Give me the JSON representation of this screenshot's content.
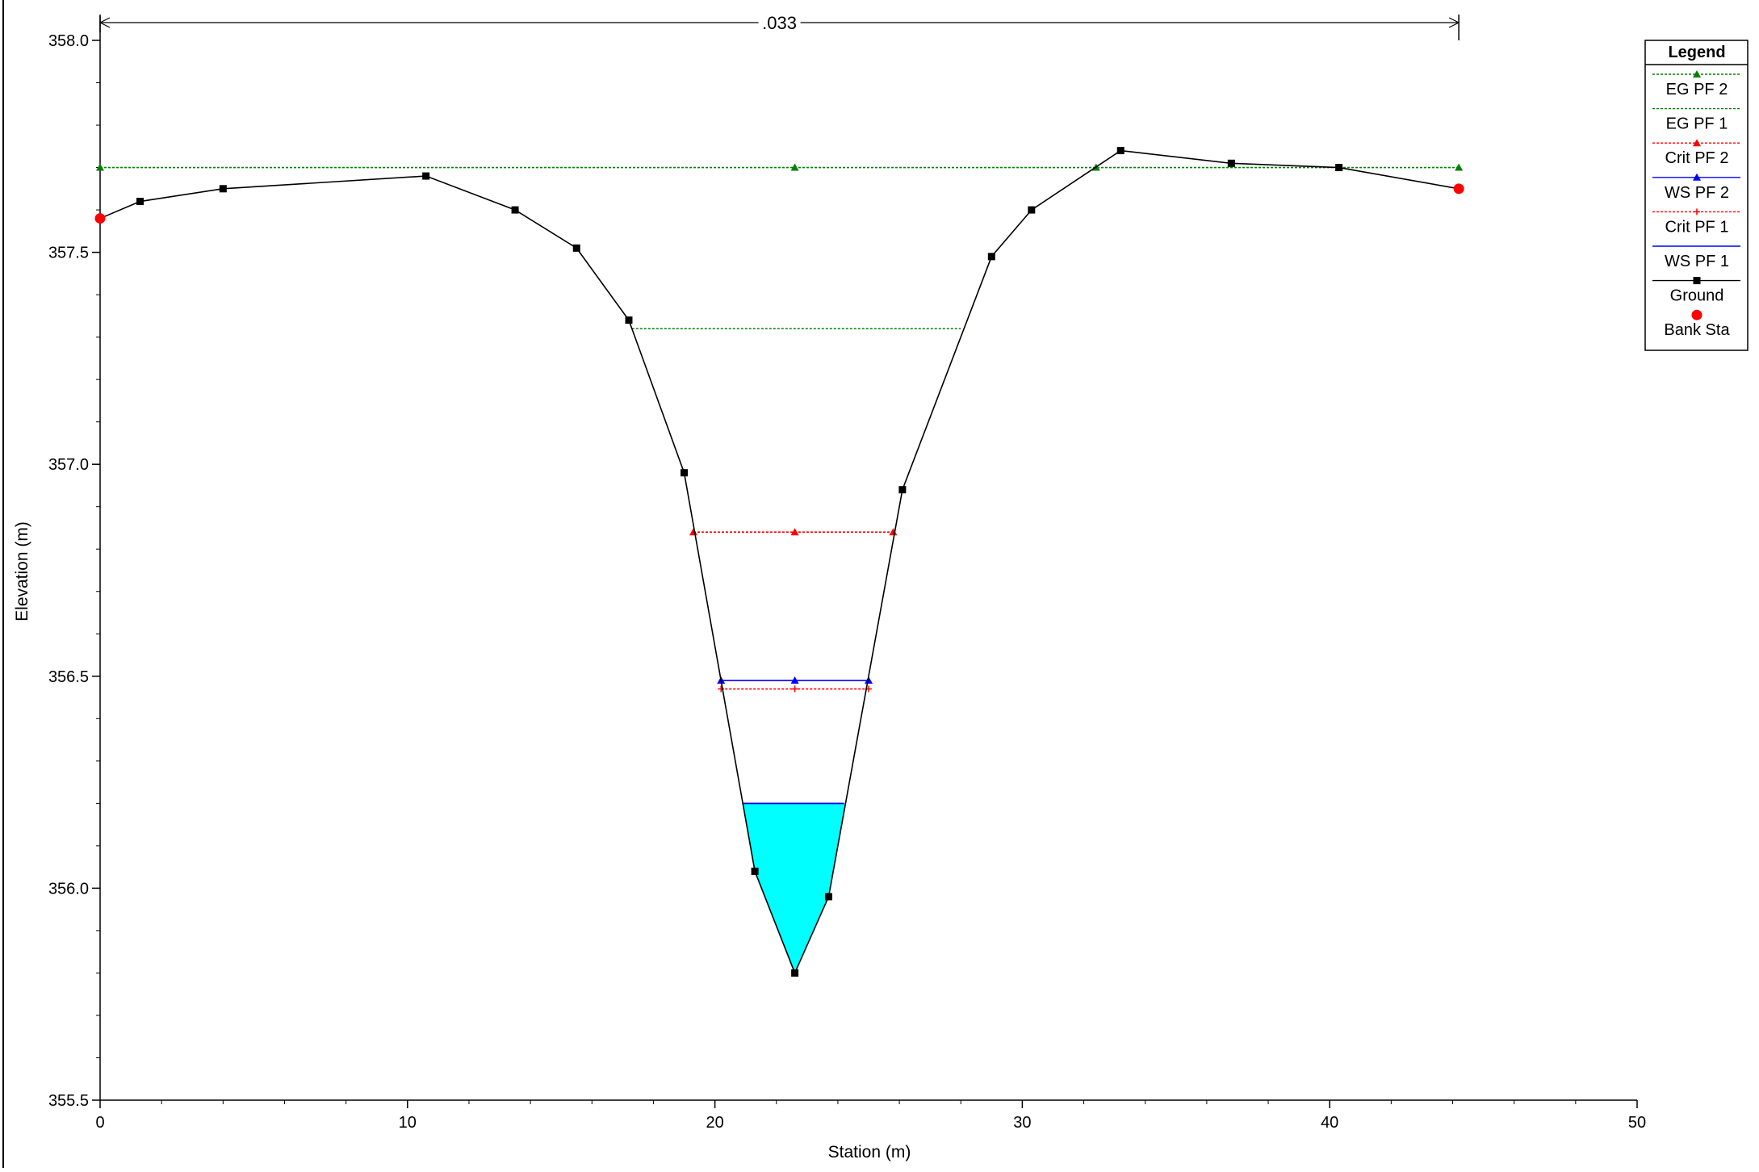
{
  "chart_data": {
    "type": "line",
    "title": "",
    "xlabel": "Station (m)",
    "ylabel": "Elevation (m)",
    "xlim": [
      0,
      50
    ],
    "ylim": [
      355.5,
      358.0
    ],
    "x_ticks": [
      0,
      10,
      20,
      30,
      40,
      50
    ],
    "x_tick_labels": [
      "0",
      "10",
      "20",
      "30",
      "40",
      "50"
    ],
    "y_ticks": [
      355.5,
      356.0,
      356.5,
      357.0,
      357.5,
      358.0
    ],
    "y_tick_labels": [
      "355.5",
      "356.0",
      "356.5",
      "357.0",
      "357.5",
      "358.0"
    ],
    "manning_n": {
      "label": ".033",
      "from_station": 0,
      "to_station": 44.2
    },
    "legend": {
      "title": "Legend",
      "placement": "top-right",
      "entries": [
        {
          "label": "EG PF 2",
          "color": "#008000",
          "line": "dotted",
          "marker": "triangle"
        },
        {
          "label": "EG PF 1",
          "color": "#008000",
          "line": "dotted",
          "marker": "none"
        },
        {
          "label": "Crit PF 2",
          "color": "#ff0000",
          "line": "dotted",
          "marker": "triangle"
        },
        {
          "label": "WS PF 2",
          "color": "#0000ff",
          "line": "solid",
          "marker": "triangle"
        },
        {
          "label": "Crit PF 1",
          "color": "#ff0000",
          "line": "dotted",
          "marker": "plus"
        },
        {
          "label": "WS PF 1",
          "color": "#0000ff",
          "line": "solid",
          "marker": "none"
        },
        {
          "label": "Ground",
          "color": "#000000",
          "line": "solid",
          "marker": "square"
        },
        {
          "label": "Bank Sta",
          "color": "#ff0000",
          "line": "none",
          "marker": "circle"
        }
      ]
    },
    "series": [
      {
        "name": "Ground",
        "color": "#000000",
        "points": [
          {
            "x": 0,
            "y": 357.58
          },
          {
            "x": 1.3,
            "y": 357.62
          },
          {
            "x": 4.0,
            "y": 357.65
          },
          {
            "x": 10.6,
            "y": 357.68
          },
          {
            "x": 13.5,
            "y": 357.6
          },
          {
            "x": 15.5,
            "y": 357.51
          },
          {
            "x": 17.2,
            "y": 357.34
          },
          {
            "x": 19.0,
            "y": 356.98
          },
          {
            "x": 21.3,
            "y": 356.04
          },
          {
            "x": 22.6,
            "y": 355.8
          },
          {
            "x": 23.7,
            "y": 355.98
          },
          {
            "x": 26.1,
            "y": 356.94
          },
          {
            "x": 29.0,
            "y": 357.49
          },
          {
            "x": 30.3,
            "y": 357.6
          },
          {
            "x": 33.2,
            "y": 357.74
          },
          {
            "x": 36.8,
            "y": 357.71
          },
          {
            "x": 40.3,
            "y": 357.7
          },
          {
            "x": 44.2,
            "y": 357.65
          }
        ]
      },
      {
        "name": "Bank Sta",
        "color": "#ff0000",
        "points": [
          {
            "x": 0,
            "y": 357.58
          },
          {
            "x": 44.2,
            "y": 357.65
          }
        ]
      },
      {
        "name": "EG PF 2",
        "color": "#008000",
        "elevation": 357.7,
        "points": [
          {
            "x": 0,
            "y": 357.7
          },
          {
            "x": 22.6,
            "y": 357.7
          },
          {
            "x": 32.4,
            "y": 357.7
          },
          {
            "x": 40.3,
            "y": 357.7
          },
          {
            "x": 44.2,
            "y": 357.7
          }
        ]
      },
      {
        "name": "EG PF 1",
        "color": "#008000",
        "elevation": 357.32,
        "points": [
          {
            "x": 17.3,
            "y": 357.32
          },
          {
            "x": 28.0,
            "y": 357.32
          }
        ]
      },
      {
        "name": "Crit PF 2",
        "color": "#ff0000",
        "elevation": 356.84,
        "points": [
          {
            "x": 19.3,
            "y": 356.84
          },
          {
            "x": 22.6,
            "y": 356.84
          },
          {
            "x": 25.8,
            "y": 356.84
          }
        ]
      },
      {
        "name": "WS PF 2",
        "color": "#0000ff",
        "elevation": 356.49,
        "points": [
          {
            "x": 20.2,
            "y": 356.49
          },
          {
            "x": 22.6,
            "y": 356.49
          },
          {
            "x": 25.0,
            "y": 356.49
          }
        ]
      },
      {
        "name": "Crit PF 1",
        "color": "#ff0000",
        "elevation": 356.47,
        "points": [
          {
            "x": 20.2,
            "y": 356.47
          },
          {
            "x": 22.6,
            "y": 356.47
          },
          {
            "x": 25.0,
            "y": 356.47
          }
        ]
      },
      {
        "name": "WS PF 1",
        "color": "#0000ff",
        "elevation": 356.2,
        "fill_color": "#00ffff",
        "points": [
          {
            "x": 20.9,
            "y": 356.2
          },
          {
            "x": 24.2,
            "y": 356.2
          }
        ]
      }
    ]
  }
}
